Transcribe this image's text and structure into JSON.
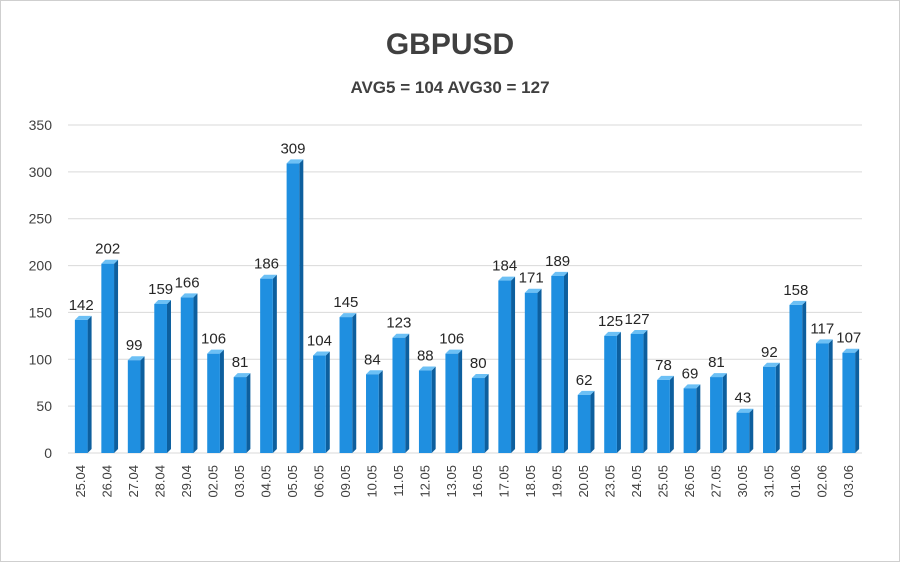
{
  "chart_data": {
    "type": "bar",
    "title": "GBPUSD",
    "subtitle": "AVG5 = 104 AVG30 = 127",
    "categories": [
      "25.04",
      "26.04",
      "27.04",
      "28.04",
      "29.04",
      "02.05",
      "03.05",
      "04.05",
      "05.05",
      "06.05",
      "09.05",
      "10.05",
      "11.05",
      "12.05",
      "13.05",
      "16.05",
      "17.05",
      "18.05",
      "19.05",
      "20.05",
      "23.05",
      "24.05",
      "25.05",
      "26.05",
      "27.05",
      "30.05",
      "31.05",
      "01.06",
      "02.06",
      "03.06"
    ],
    "values": [
      142,
      202,
      99,
      159,
      166,
      106,
      81,
      186,
      309,
      104,
      145,
      84,
      123,
      88,
      106,
      80,
      184,
      171,
      189,
      62,
      125,
      127,
      78,
      69,
      81,
      43,
      92,
      158,
      117,
      107
    ],
    "ylim": [
      0,
      350
    ],
    "yticks": [
      0,
      50,
      100,
      150,
      200,
      250,
      300,
      350
    ],
    "grid": true,
    "data_labels": true,
    "colors": {
      "bar_front": "#1f8fe0",
      "bar_side": "#0d5f9e",
      "bar_top": "#6cc0f5",
      "gridline": "#d9d9d9",
      "text": "#404040"
    }
  }
}
